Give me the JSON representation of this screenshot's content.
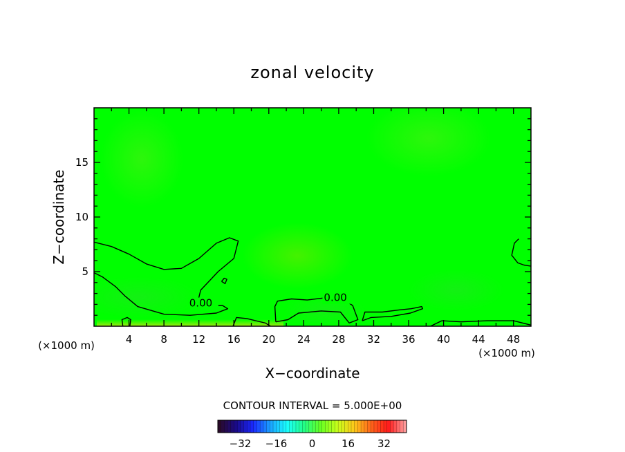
{
  "chart_data": {
    "type": "heatmap",
    "title": "zonal velocity",
    "xlabel": "X−coordinate",
    "ylabel": "Z−coordinate",
    "x_unit_left": "(×1000 m)",
    "x_unit_right": "(×1000 m)",
    "xlim": [
      0,
      50
    ],
    "ylim": [
      0,
      20
    ],
    "x_ticks": [
      4,
      8,
      12,
      16,
      20,
      24,
      28,
      32,
      36,
      40,
      44,
      48
    ],
    "y_ticks": [
      5,
      10,
      15
    ],
    "field_colors": {
      "background": "#00ff00",
      "weak_negative": "#1ee81e",
      "weak_positive": "#4cf014",
      "strong_positive": "#7ce600"
    },
    "contours": [
      {
        "level": 0.0,
        "label": "0.00",
        "label_at": [
          10.9,
          1.8
        ],
        "points": [
          [
            0,
            7.7
          ],
          [
            2,
            7.3
          ],
          [
            4,
            6.6
          ],
          [
            6,
            5.7
          ],
          [
            8,
            5.2
          ],
          [
            10,
            5.3
          ],
          [
            12,
            6.2
          ],
          [
            14,
            7.6
          ],
          [
            15.5,
            8.1
          ],
          [
            16.5,
            7.8
          ],
          [
            16,
            6.2
          ],
          [
            14.2,
            5.0
          ],
          [
            12.2,
            3.3
          ],
          [
            11.8,
            2.0
          ],
          [
            13,
            1.9
          ],
          [
            14.7,
            1.9
          ],
          [
            15.3,
            1.6
          ],
          [
            14,
            1.2
          ],
          [
            11,
            1.0
          ],
          [
            8,
            1.1
          ],
          [
            5,
            1.8
          ],
          [
            3.5,
            2.8
          ],
          [
            2.5,
            3.6
          ],
          [
            1,
            4.5
          ],
          [
            0,
            4.9
          ]
        ]
      },
      {
        "level": 0.0,
        "label": "0.00",
        "label_at": [
          26.3,
          2.3
        ],
        "points": [
          [
            20.8,
            0.4
          ],
          [
            20.7,
            1.8
          ],
          [
            21,
            2.3
          ],
          [
            22.6,
            2.5
          ],
          [
            24.4,
            2.4
          ],
          [
            26.4,
            2.6
          ],
          [
            28.2,
            2.6
          ],
          [
            29.6,
            1.9
          ],
          [
            30.2,
            0.6
          ],
          [
            29.2,
            0.3
          ],
          [
            28.2,
            1.3
          ],
          [
            26,
            1.4
          ],
          [
            23.4,
            1.2
          ],
          [
            22.2,
            0.6
          ],
          [
            20.8,
            0.4
          ]
        ]
      },
      {
        "level": 0.0,
        "label": "",
        "label_at": [
          0,
          0
        ],
        "points": [
          [
            30.7,
            0.5
          ],
          [
            31,
            1.3
          ],
          [
            33,
            1.3
          ],
          [
            35,
            1.5
          ],
          [
            36.3,
            1.6
          ],
          [
            37.5,
            1.8
          ],
          [
            37.6,
            1.6
          ],
          [
            36.2,
            1.2
          ],
          [
            34,
            0.9
          ],
          [
            31.7,
            0.8
          ],
          [
            30.7,
            0.5
          ]
        ]
      },
      {
        "level": 0.0,
        "label": "",
        "label_at": [
          0,
          0
        ],
        "points": [
          [
            48.6,
            8.0
          ],
          [
            48.1,
            7.6
          ],
          [
            47.8,
            6.5
          ],
          [
            48.5,
            5.8
          ],
          [
            49.2,
            5.6
          ],
          [
            50,
            5.5
          ]
        ]
      },
      {
        "level": 0.0,
        "label": "",
        "label_at": [
          0,
          0
        ],
        "points": [
          [
            38.5,
            0.0
          ],
          [
            39.8,
            0.5
          ],
          [
            42,
            0.4
          ],
          [
            45,
            0.5
          ],
          [
            48,
            0.5
          ],
          [
            50,
            0.1
          ]
        ]
      },
      {
        "level": 0.0,
        "label": "",
        "label_at": [
          0,
          0
        ],
        "points": [
          [
            15.9,
            0.0
          ],
          [
            16.3,
            0.8
          ],
          [
            17.5,
            0.7
          ],
          [
            18.5,
            0.5
          ],
          [
            19.6,
            0.3
          ],
          [
            20.2,
            0.0
          ]
        ]
      },
      {
        "level": 0.0,
        "label": "",
        "label_at": [
          0,
          0
        ],
        "points": [
          [
            14.6,
            4.1
          ],
          [
            14.9,
            4.4
          ],
          [
            15.2,
            4.3
          ],
          [
            15.0,
            3.9
          ],
          [
            14.6,
            4.1
          ]
        ]
      },
      {
        "level": 0.0,
        "label": "",
        "label_at": [
          0,
          0
        ],
        "points": [
          [
            3.3,
            0.0
          ],
          [
            3.2,
            0.6
          ],
          [
            3.8,
            0.8
          ],
          [
            4.2,
            0.6
          ],
          [
            4.1,
            0.0
          ]
        ]
      }
    ],
    "footnote": "CONTOUR INTERVAL = 5.000E+00",
    "colorbar": {
      "range": [
        -42,
        42
      ],
      "ticks": [
        -32,
        -16,
        0,
        16,
        32
      ],
      "tick_labels": [
        "−32",
        "−16",
        "0",
        "16",
        "32"
      ],
      "color_stops": [
        "#2a0a2a",
        "#1a0a8a",
        "#1a28ff",
        "#1aa0ff",
        "#1affff",
        "#22ff88",
        "#66ff22",
        "#c8ff1a",
        "#ffc81a",
        "#ff641a",
        "#ff1a1a",
        "#ff9a9a"
      ]
    }
  }
}
